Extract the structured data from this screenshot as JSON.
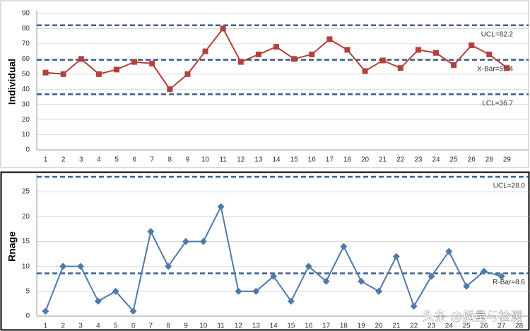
{
  "charts": [
    {
      "type": "line",
      "y_label": "Individual",
      "categories": [
        "1",
        "2",
        "3",
        "4",
        "5",
        "6",
        "7",
        "8",
        "9",
        "10",
        "11",
        "12",
        "13",
        "14",
        "15",
        "16",
        "17",
        "18",
        "20",
        "21",
        "22",
        "23",
        "24",
        "25",
        "26",
        "28",
        "29"
      ],
      "series": [
        {
          "color": "#b3403d",
          "values": [
            51,
            50,
            60,
            50,
            53,
            58,
            57,
            40,
            50,
            65,
            80,
            58,
            63,
            68,
            60,
            63,
            73,
            66,
            52,
            59,
            54,
            66,
            64,
            56,
            69,
            63,
            54
          ]
        }
      ],
      "ylim": [
        0,
        90
      ],
      "yticks": [
        0,
        10,
        20,
        30,
        40,
        50,
        60,
        70,
        80,
        90
      ],
      "grid": true,
      "control_lines": [
        {
          "value": 82.2,
          "label": "UCL=82.2"
        },
        {
          "value": 59.4,
          "label": "X-Bar=59.4"
        },
        {
          "value": 36.7,
          "label": "LCL=36.7"
        }
      ]
    },
    {
      "type": "line",
      "y_label": "Rnage",
      "categories": [
        "1",
        "2",
        "3",
        "4",
        "5",
        "6",
        "7",
        "8",
        "9",
        "10",
        "11",
        "12",
        "13",
        "14",
        "15",
        "16",
        "17",
        "18",
        "19",
        "20",
        "21",
        "22",
        "23",
        "24",
        "25",
        "26",
        "27",
        "28"
      ],
      "series": [
        {
          "color": "#4f7aa8",
          "values": [
            1,
            10,
            10,
            3,
            5,
            1,
            17,
            10,
            15,
            15,
            22,
            5,
            5,
            8,
            3,
            10,
            7,
            14,
            7,
            5,
            12,
            2,
            8,
            13,
            6,
            9,
            8,
            null
          ]
        }
      ],
      "ylim": [
        0,
        28
      ],
      "yticks": [
        0,
        5,
        10,
        15,
        20,
        25
      ],
      "grid": true,
      "control_lines": [
        {
          "value": 28.0,
          "label": "UCL=28.0"
        },
        {
          "value": 8.6,
          "label": "R-Bar=8.6"
        }
      ]
    }
  ],
  "watermark": "头条 @质量与检测"
}
